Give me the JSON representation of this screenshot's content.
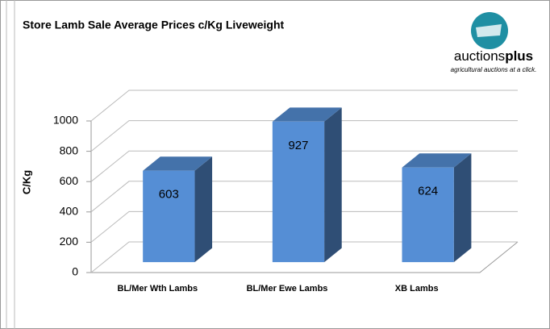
{
  "chart_data": {
    "type": "bar3d",
    "title": "Store Lamb Sale Average Prices c/Kg Liveweight",
    "y_label": "C/Kg",
    "categories": [
      "BL/Mer Wth Lambs",
      "BL/Mer Ewe Lambs",
      "XB Lambs"
    ],
    "values": [
      603,
      927,
      624
    ],
    "color": "#558ed5",
    "ylim": [
      0,
      1000
    ],
    "yticks": [
      0,
      200,
      400,
      600,
      800,
      1000
    ],
    "grid": true,
    "logo": {
      "name_light": "auctions",
      "name_bold": "plus",
      "tagline": "agricultural auctions at a click."
    }
  }
}
